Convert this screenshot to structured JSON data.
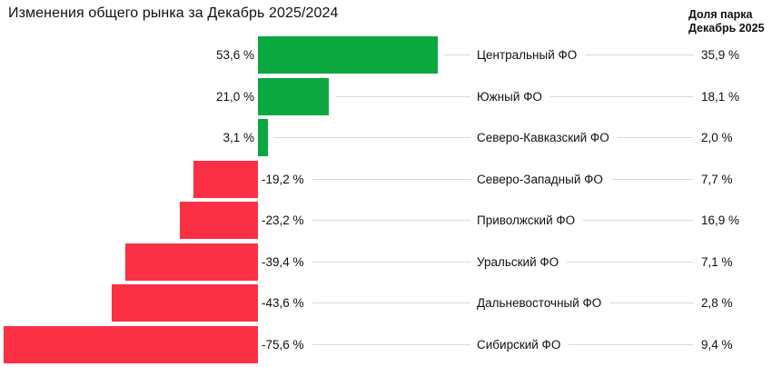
{
  "title": "Изменения общего рынка за Декабрь 2025/2024",
  "right_header": {
    "line1": "Доля парка",
    "line2": "Декабрь 2025"
  },
  "colors": {
    "positive_bar": "#0BA840",
    "negative_bar": "#FB3044",
    "connector_line": "#D9D9D9",
    "text": "#111111"
  },
  "chart_data": {
    "type": "bar",
    "orientation": "horizontal",
    "title": "Изменения общего рынка за Декабрь 2025/2024",
    "value_suffix": "%",
    "categories": [
      "Центральный ФО",
      "Южный ФО",
      "Северо-Кавказский ФО",
      "Северо-Западный ФО",
      "Приволжский ФО",
      "Уральский ФО",
      "Дальневосточный ФО",
      "Сибирский ФО"
    ],
    "series": [
      {
        "name": "Изменение общего рынка, Декабрь 2025/2024, %",
        "values": [
          53.6,
          21.0,
          3.1,
          -19.2,
          -23.2,
          -39.4,
          -43.6,
          -75.6
        ]
      },
      {
        "name": "Доля парка, Декабрь 2025, %",
        "values": [
          35.9,
          18.1,
          2.0,
          7.7,
          16.9,
          7.1,
          2.8,
          9.4
        ]
      }
    ],
    "rows": [
      {
        "region": "Центральный ФО",
        "change": 53.6,
        "change_label": "53,6 %",
        "share": 35.9,
        "share_label": "35,9 %"
      },
      {
        "region": "Южный ФО",
        "change": 21.0,
        "change_label": "21,0 %",
        "share": 18.1,
        "share_label": "18,1 %"
      },
      {
        "region": "Северо-Кавказский ФО",
        "change": 3.1,
        "change_label": "3,1 %",
        "share": 2.0,
        "share_label": "2,0 %"
      },
      {
        "region": "Северо-Западный ФО",
        "change": -19.2,
        "change_label": "-19,2 %",
        "share": 7.7,
        "share_label": "7,7 %"
      },
      {
        "region": "Приволжский ФО",
        "change": -23.2,
        "change_label": "-23,2 %",
        "share": 16.9,
        "share_label": "16,9 %"
      },
      {
        "region": "Уральский ФО",
        "change": -39.4,
        "change_label": "-39,4 %",
        "share": 7.1,
        "share_label": "7,1 %"
      },
      {
        "region": "Дальневосточный ФО",
        "change": -43.6,
        "change_label": "-43,6 %",
        "share": 2.8,
        "share_label": "2,8 %"
      },
      {
        "region": "Сибирский ФО",
        "change": -75.6,
        "change_label": "-75,6 %",
        "share": 9.4,
        "share_label": "9,4 %"
      }
    ],
    "axis": {
      "baseline_value": 0,
      "xlim": [
        -80,
        60
      ],
      "grid": false,
      "legend": "none"
    }
  }
}
